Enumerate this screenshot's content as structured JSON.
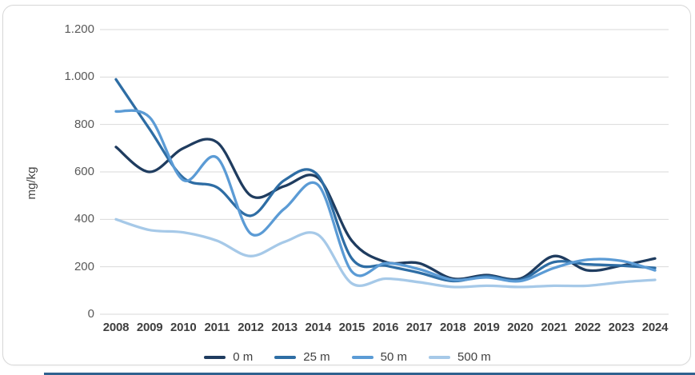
{
  "chart_data": {
    "type": "line",
    "title": "",
    "xlabel": "",
    "ylabel": "mg/kg",
    "x": [
      "2008",
      "2009",
      "2010",
      "2011",
      "2012",
      "2013",
      "2014",
      "2015",
      "2016",
      "2017",
      "2018",
      "2019",
      "2020",
      "2021",
      "2022",
      "2023",
      "2024"
    ],
    "y_ticks": [
      "0",
      "200",
      "400",
      "600",
      "800",
      "1.000",
      "1.200"
    ],
    "y_tick_step": 200,
    "ylim": [
      0,
      1200
    ],
    "grid": true,
    "smooth_lines": true,
    "legend_position": "bottom",
    "series": [
      {
        "name": "0 m",
        "color": "#1F3C5F",
        "values": [
          705,
          600,
          700,
          725,
          500,
          540,
          575,
          310,
          220,
          215,
          150,
          165,
          150,
          245,
          185,
          205,
          235
        ]
      },
      {
        "name": "25 m",
        "color": "#2E6DA4",
        "values": [
          990,
          780,
          575,
          535,
          415,
          565,
          585,
          235,
          205,
          175,
          140,
          160,
          145,
          220,
          210,
          205,
          195
        ]
      },
      {
        "name": "50 m",
        "color": "#5B9BD5",
        "values": [
          855,
          830,
          565,
          660,
          340,
          445,
          545,
          180,
          215,
          190,
          145,
          155,
          140,
          195,
          230,
          225,
          185
        ]
      },
      {
        "name": "500 m",
        "color": "#A6C9E8",
        "values": [
          400,
          355,
          345,
          310,
          245,
          305,
          335,
          130,
          150,
          135,
          115,
          120,
          115,
          120,
          120,
          135,
          145
        ]
      }
    ]
  },
  "colors": {
    "gridline": "#d9d9d9",
    "axis_line": "#d9d9d9",
    "card_border": "#d7d7d7",
    "bottom_accent": "#2F618F",
    "y_tick_text": "#595959",
    "x_tick_text": "#3f3f3f"
  }
}
